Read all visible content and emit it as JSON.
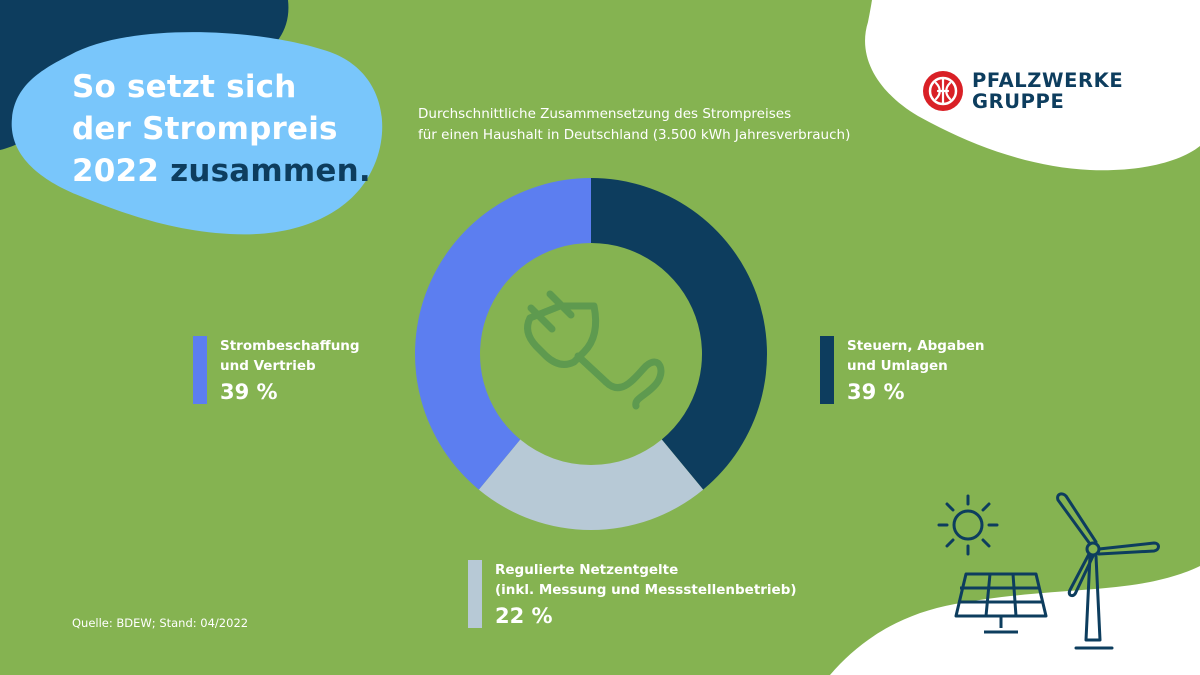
{
  "headline": {
    "line1": "So setzt sich",
    "line2": "der Strompreis",
    "line3_year": "2022",
    "line3_accent": "zusammen."
  },
  "subtitle": {
    "line1": "Durchschnittliche Zusammensetzung des Strompreises",
    "line2": "für einen Haushalt in Deutschland (3.500 kWh Jahresverbrauch)"
  },
  "brand": {
    "line1": "PFALZWERKE",
    "line2": "GRUPPE"
  },
  "source": "Quelle: BDEW; Stand: 04/2022",
  "colors": {
    "background": "#85b351",
    "navy": "#0d3d5e",
    "light_blue_blob": "#79c6fb",
    "logo_red": "#d92026"
  },
  "icons": [
    "plug-icon",
    "sun-icon",
    "solar-panel-icon",
    "wind-turbine-icon",
    "pfalzwerke-logo-icon"
  ],
  "chart_data": {
    "type": "pie",
    "donut": true,
    "categories": [
      "Steuern, Abgaben und Umlagen",
      "Regulierte Netzentgelte (inkl. Messung und Messstellenbetrieb)",
      "Strombeschaffung und Vertrieb"
    ],
    "values": [
      39,
      22,
      39
    ],
    "unit": "%",
    "colors": [
      "#0d3d5e",
      "#b7c9d6",
      "#5c7ef0"
    ],
    "legend": [
      {
        "line1": "Strombeschaffung",
        "line2": "und Vertrieb",
        "value_label": "39 %",
        "color": "#5c7ef0"
      },
      {
        "line1": "Steuern, Abgaben",
        "line2": "und Umlagen",
        "value_label": "39 %",
        "color": "#0d3d5e"
      },
      {
        "line1": "Regulierte Netzentgelte",
        "line2": "(inkl. Messung und Messstellenbetrieb)",
        "value_label": "22 %",
        "color": "#b7c9d6"
      }
    ]
  }
}
